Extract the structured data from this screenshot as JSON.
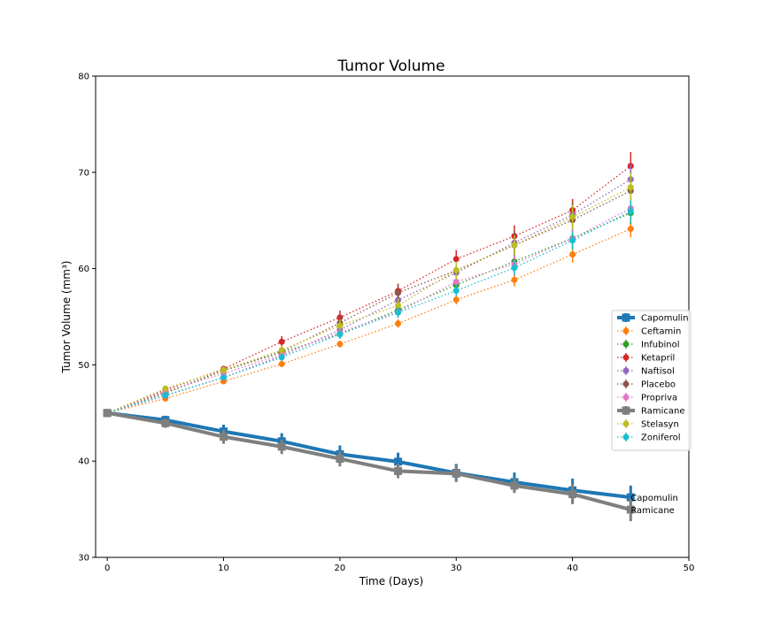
{
  "chart_data": {
    "type": "line",
    "title": "Tumor Volume",
    "xlabel": "Time (Days)",
    "ylabel": "Tumor Volume (mm³)",
    "xlim": [
      -1,
      50
    ],
    "ylim": [
      30,
      80
    ],
    "xticks": [
      0,
      10,
      20,
      30,
      40,
      50
    ],
    "yticks": [
      30,
      40,
      50,
      60,
      70,
      80
    ],
    "grid": false,
    "legend_position": "right",
    "x": [
      0,
      5,
      10,
      15,
      20,
      25,
      30,
      35,
      40,
      45
    ],
    "series": [
      {
        "name": "Capomulin",
        "color": "#1f77b4",
        "style": "solid-thick",
        "marker": "square",
        "values": [
          45.0,
          44.27,
          43.08,
          42.06,
          40.72,
          39.94,
          38.77,
          37.82,
          36.96,
          36.24
        ],
        "errors": [
          0.0,
          0.45,
          0.7,
          0.84,
          0.91,
          0.94,
          0.93,
          1.0,
          1.22,
          1.22
        ]
      },
      {
        "name": "Ceftamin",
        "color": "#ff7f0e",
        "style": "dotted",
        "marker": "circle",
        "values": [
          45.0,
          46.5,
          48.29,
          50.09,
          52.16,
          54.29,
          56.77,
          58.83,
          61.47,
          64.13
        ],
        "errors": [
          0.0,
          0.16,
          0.24,
          0.33,
          0.36,
          0.44,
          0.49,
          0.69,
          0.85,
          0.87
        ]
      },
      {
        "name": "Infubinol",
        "color": "#2ca02c",
        "style": "dotted",
        "marker": "circle",
        "values": [
          45.0,
          47.06,
          49.4,
          51.3,
          53.2,
          55.72,
          58.3,
          60.74,
          63.16,
          65.76
        ],
        "errors": [
          0.0,
          0.24,
          0.28,
          0.36,
          0.48,
          0.55,
          0.63,
          0.98,
          1.06,
          1.14
        ]
      },
      {
        "name": "Ketapril",
        "color": "#d62728",
        "style": "dotted",
        "marker": "circle",
        "values": [
          45.0,
          47.39,
          49.58,
          52.4,
          54.92,
          57.68,
          60.99,
          63.37,
          66.07,
          70.66
        ],
        "errors": [
          0.0,
          0.26,
          0.36,
          0.58,
          0.73,
          0.76,
          0.93,
          1.13,
          1.16,
          1.45
        ]
      },
      {
        "name": "Naftisol",
        "color": "#9467bd",
        "style": "dotted",
        "marker": "circle",
        "values": [
          45.0,
          46.8,
          48.69,
          50.93,
          53.64,
          56.73,
          59.56,
          62.69,
          65.6,
          69.27
        ],
        "errors": [
          0.0,
          0.2,
          0.37,
          0.53,
          0.6,
          0.8,
          0.81,
          0.98,
          1.1,
          1.56
        ]
      },
      {
        "name": "Placebo",
        "color": "#8c564b",
        "style": "dotted",
        "marker": "circle",
        "values": [
          45.0,
          47.13,
          49.42,
          51.36,
          54.36,
          57.48,
          59.81,
          62.42,
          65.05,
          68.08
        ],
        "errors": [
          0.0,
          0.22,
          0.4,
          0.61,
          0.84,
          0.93,
          1.05,
          1.56,
          1.89,
          1.96
        ]
      },
      {
        "name": "Propriva",
        "color": "#e377c2",
        "style": "dotted",
        "marker": "circle",
        "values": [
          45.0,
          47.25,
          49.1,
          51.07,
          53.35,
          55.5,
          58.63,
          60.47,
          63.13,
          66.26
        ],
        "errors": [
          0.0,
          0.23,
          0.37,
          0.47,
          0.55,
          0.63,
          0.77,
          0.92,
          1.05,
          1.19
        ]
      },
      {
        "name": "Ramicane",
        "color": "#7f7f7f",
        "style": "solid-thick",
        "marker": "square",
        "values": [
          45.0,
          43.94,
          42.53,
          41.5,
          40.24,
          38.97,
          38.7,
          37.45,
          36.57,
          34.96
        ],
        "errors": [
          0.0,
          0.48,
          0.72,
          0.77,
          0.79,
          0.75,
          0.86,
          0.76,
          1.05,
          1.2
        ]
      },
      {
        "name": "Stelasyn",
        "color": "#bcbd22",
        "style": "dotted",
        "marker": "circle",
        "values": [
          45.0,
          47.53,
          49.46,
          51.53,
          54.07,
          56.17,
          59.83,
          62.44,
          65.36,
          68.44
        ],
        "errors": [
          0.0,
          0.24,
          0.43,
          0.49,
          0.62,
          0.74,
          0.9,
          1.0,
          1.24,
          1.53
        ]
      },
      {
        "name": "Zoniferol",
        "color": "#17becf",
        "style": "dotted",
        "marker": "circle",
        "values": [
          45.0,
          46.85,
          48.69,
          50.78,
          53.17,
          55.43,
          57.71,
          60.09,
          62.92,
          65.96
        ],
        "errors": [
          0.0,
          0.19,
          0.26,
          0.36,
          0.44,
          0.53,
          0.58,
          0.78,
          0.95,
          1.14
        ]
      }
    ],
    "annotations": [
      {
        "text": "Capomulin",
        "x": 45,
        "y": 36.24
      },
      {
        "text": "Ramicane",
        "x": 45,
        "y": 34.96
      }
    ]
  }
}
